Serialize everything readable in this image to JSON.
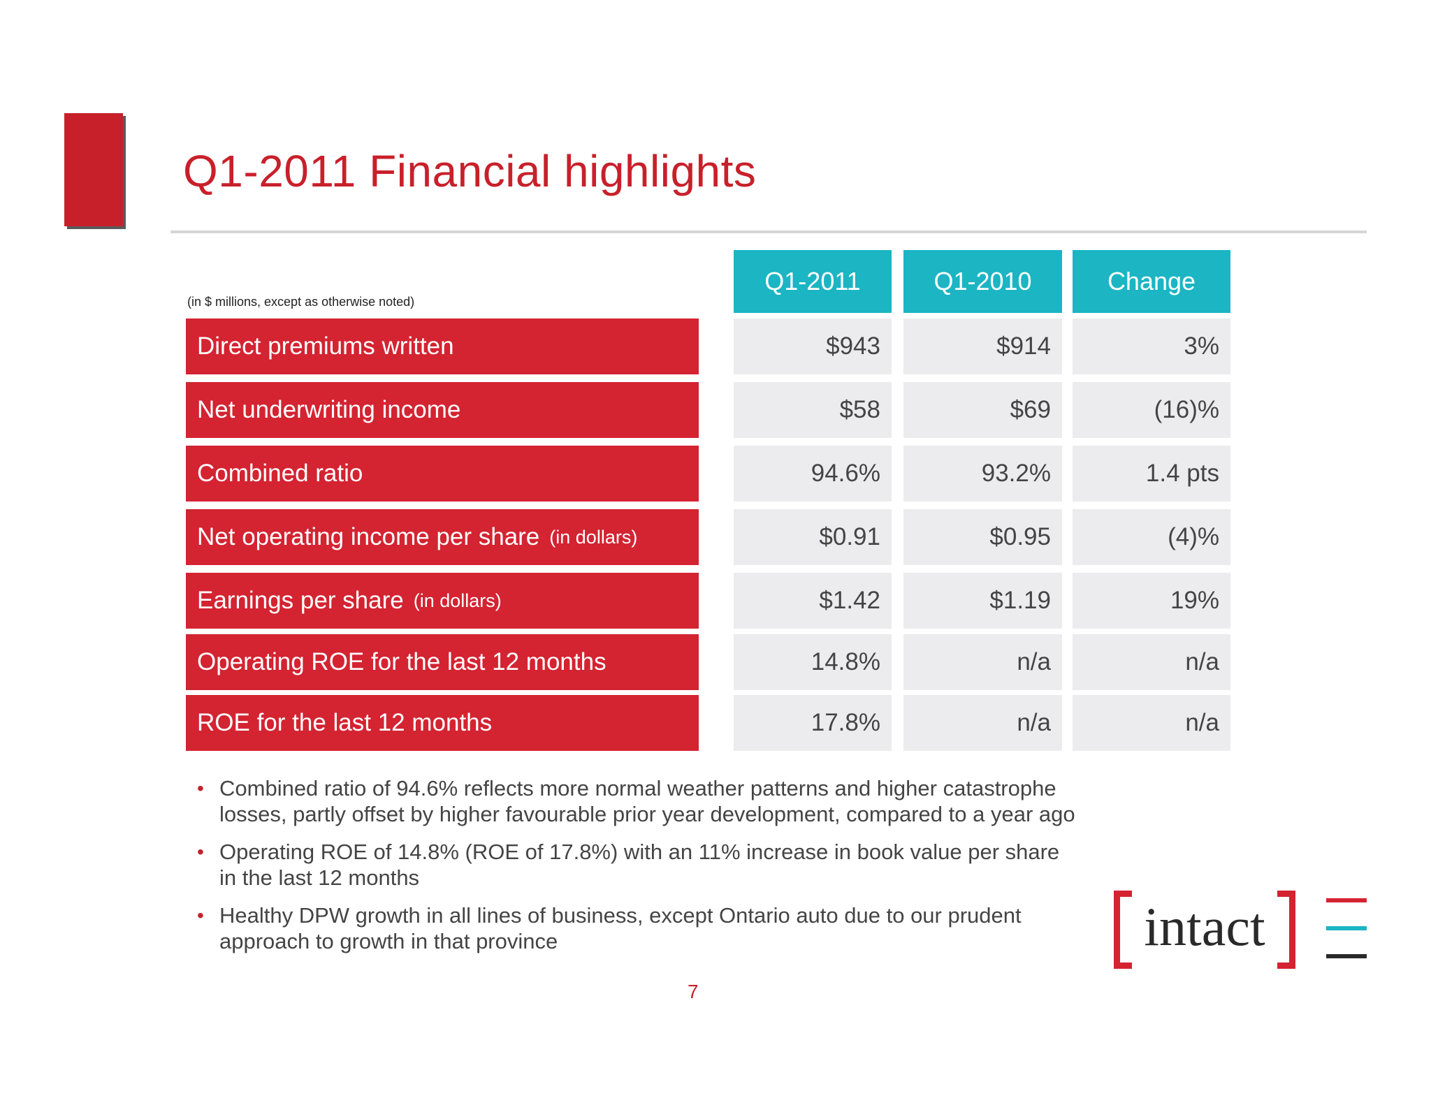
{
  "slide": {
    "title": "Q1-2011 Financial highlights",
    "units_note": "(in $ millions, except as otherwise noted)",
    "page_number": "7"
  },
  "colors": {
    "brand_red": "#d42331",
    "brand_teal": "#1bb5c4",
    "cell_grey": "#ececee"
  },
  "table": {
    "headers": [
      "Q1-2011",
      "Q1-2010",
      "Change"
    ],
    "rows": [
      {
        "label": "Direct premiums written",
        "note": "",
        "values": [
          "$943",
          "$914",
          "3%"
        ]
      },
      {
        "label": "Net underwriting income",
        "note": "",
        "values": [
          "$58",
          "$69",
          "(16)%"
        ]
      },
      {
        "label": "Combined ratio",
        "note": "",
        "values": [
          "94.6%",
          "93.2%",
          "1.4 pts"
        ]
      },
      {
        "label": "Net operating income per share",
        "note": "(in dollars)",
        "values": [
          "$0.91",
          "$0.95",
          "(4)%"
        ]
      },
      {
        "label": "Earnings per share",
        "note": "(in dollars)",
        "values": [
          "$1.42",
          "$1.19",
          "19%"
        ]
      },
      {
        "label": "Operating ROE for the last 12 months",
        "note": "",
        "values": [
          "14.8%",
          "n/a",
          "n/a"
        ]
      },
      {
        "label": "ROE for the last 12 months",
        "note": "",
        "values": [
          "17.8%",
          "n/a",
          "n/a"
        ]
      }
    ]
  },
  "bullets": [
    "Combined ratio of 94.6% reflects more normal weather patterns and higher catastrophe losses, partly offset by higher favourable prior year development, compared to a year ago",
    "Operating ROE of 14.8% (ROE of 17.8%) with an 11% increase in book value per share in the last 12 months",
    "Healthy DPW growth in all lines of business, except Ontario auto due to our prudent approach to growth in that province"
  ],
  "logo": {
    "wordmark": "intact"
  }
}
